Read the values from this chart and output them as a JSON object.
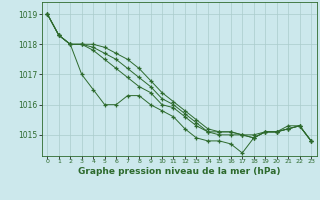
{
  "background_color": "#cce8ec",
  "grid_color": "#aacccc",
  "line_color": "#2d6a2d",
  "text_color": "#2d6a2d",
  "xlabel": "Graphe pression niveau de la mer (hPa)",
  "ylim": [
    1014.3,
    1019.4
  ],
  "xlim": [
    -0.5,
    23.5
  ],
  "yticks": [
    1015,
    1016,
    1017,
    1018,
    1019
  ],
  "xticks": [
    0,
    1,
    2,
    3,
    4,
    5,
    6,
    7,
    8,
    9,
    10,
    11,
    12,
    13,
    14,
    15,
    16,
    17,
    18,
    19,
    20,
    21,
    22,
    23
  ],
  "series": [
    [
      1019.0,
      1018.3,
      1018.0,
      1017.0,
      1016.5,
      1016.0,
      1016.0,
      1016.3,
      1016.3,
      1016.0,
      1015.8,
      1015.6,
      1015.2,
      1014.9,
      1014.8,
      1014.8,
      1014.7,
      1014.4,
      1014.9,
      1015.1,
      1015.1,
      1015.3,
      1015.3,
      1014.8
    ],
    [
      1019.0,
      1018.3,
      1018.0,
      1018.0,
      1017.8,
      1017.5,
      1017.2,
      1016.9,
      1016.6,
      1016.4,
      1016.0,
      1015.9,
      1015.6,
      1015.3,
      1015.1,
      1015.0,
      1015.0,
      1015.0,
      1014.9,
      1015.1,
      1015.1,
      1015.2,
      1015.3,
      1014.8
    ],
    [
      1019.0,
      1018.3,
      1018.0,
      1018.0,
      1017.9,
      1017.7,
      1017.5,
      1017.2,
      1016.9,
      1016.6,
      1016.2,
      1016.0,
      1015.7,
      1015.4,
      1015.1,
      1015.1,
      1015.1,
      1015.0,
      1015.0,
      1015.1,
      1015.1,
      1015.2,
      1015.3,
      1014.8
    ],
    [
      1019.0,
      1018.3,
      1018.0,
      1018.0,
      1018.0,
      1017.9,
      1017.7,
      1017.5,
      1017.2,
      1016.8,
      1016.4,
      1016.1,
      1015.8,
      1015.5,
      1015.2,
      1015.1,
      1015.1,
      1015.0,
      1014.9,
      1015.1,
      1015.1,
      1015.2,
      1015.3,
      1014.8
    ]
  ]
}
